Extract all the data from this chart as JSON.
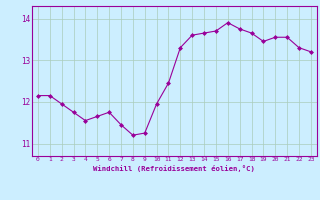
{
  "x": [
    0,
    1,
    2,
    3,
    4,
    5,
    6,
    7,
    8,
    9,
    10,
    11,
    12,
    13,
    14,
    15,
    16,
    17,
    18,
    19,
    20,
    21,
    22,
    23
  ],
  "y": [
    12.15,
    12.15,
    11.95,
    11.75,
    11.55,
    11.65,
    11.75,
    11.45,
    11.2,
    11.25,
    11.95,
    12.45,
    13.3,
    13.6,
    13.65,
    13.7,
    13.9,
    13.75,
    13.65,
    13.45,
    13.55,
    13.55,
    13.3,
    13.2
  ],
  "line_color": "#990099",
  "marker": "D",
  "marker_size": 2.0,
  "bg_color": "#cceeff",
  "grid_color": "#aaccbb",
  "xlabel": "Windchill (Refroidissement éolien,°C)",
  "xlabel_color": "#990099",
  "tick_color": "#990099",
  "ylim": [
    10.7,
    14.3
  ],
  "xlim": [
    -0.5,
    23.5
  ],
  "yticks": [
    11,
    12,
    13,
    14
  ],
  "xticks": [
    0,
    1,
    2,
    3,
    4,
    5,
    6,
    7,
    8,
    9,
    10,
    11,
    12,
    13,
    14,
    15,
    16,
    17,
    18,
    19,
    20,
    21,
    22,
    23
  ],
  "spine_color": "#990099"
}
